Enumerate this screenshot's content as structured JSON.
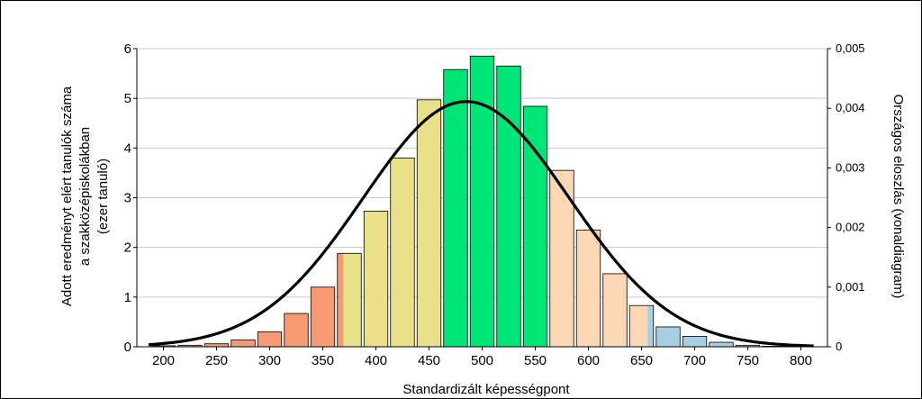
{
  "chart_data": {
    "type": "bar",
    "xlabel": "Standardizált képességpont",
    "ylabel_lines": [
      "Adott eredményt elért tanulók száma",
      "a szakközépiskolákban",
      "(ezer tanuló)"
    ],
    "y2label": "Országos eloszlás (vonaldiagram)",
    "ylim": [
      0,
      6
    ],
    "y2lim": [
      0,
      0.005
    ],
    "xlim": [
      175,
      825
    ],
    "grid": true,
    "x_ticks": [
      "200",
      "250",
      "300",
      "350",
      "400",
      "450",
      "500",
      "550",
      "600",
      "650",
      "700",
      "750",
      "800"
    ],
    "y_ticks": [
      "0",
      "1",
      "2",
      "3",
      "4",
      "5",
      "6"
    ],
    "y2_ticks": [
      "0",
      "0,001",
      "0,002",
      "0,003",
      "0,004",
      "0,005"
    ],
    "bin_width": 25,
    "colors": {
      "orange": "#f79a74",
      "yellow": "#ebe08a",
      "green": "#00e676",
      "peach": "#fbd7b4",
      "blue": "#a6cfe3",
      "curve": "#000000"
    },
    "bars": [
      {
        "x": 200,
        "value": 0.02,
        "color": "orange"
      },
      {
        "x": 225,
        "value": 0.03,
        "color": "orange"
      },
      {
        "x": 250,
        "value": 0.06,
        "color": "orange"
      },
      {
        "x": 275,
        "value": 0.14,
        "color": "orange"
      },
      {
        "x": 300,
        "value": 0.3,
        "color": "orange"
      },
      {
        "x": 325,
        "value": 0.67,
        "color": "orange"
      },
      {
        "x": 350,
        "value": 1.2,
        "color": "orange"
      },
      {
        "x": 375,
        "value": 1.88,
        "color": "yellow",
        "split": {
          "color": "orange",
          "fraction": 0.25
        }
      },
      {
        "x": 400,
        "value": 2.73,
        "color": "yellow"
      },
      {
        "x": 425,
        "value": 3.8,
        "color": "yellow"
      },
      {
        "x": 450,
        "value": 4.97,
        "color": "yellow"
      },
      {
        "x": 475,
        "value": 5.58,
        "color": "green"
      },
      {
        "x": 500,
        "value": 5.85,
        "color": "green"
      },
      {
        "x": 525,
        "value": 5.65,
        "color": "green"
      },
      {
        "x": 550,
        "value": 4.84,
        "color": "green"
      },
      {
        "x": 575,
        "value": 3.55,
        "color": "peach"
      },
      {
        "x": 600,
        "value": 2.35,
        "color": "peach"
      },
      {
        "x": 625,
        "value": 1.47,
        "color": "peach"
      },
      {
        "x": 650,
        "value": 0.83,
        "color": "peach",
        "split": {
          "color": "blue",
          "fraction": 0.25,
          "side": "right"
        }
      },
      {
        "x": 675,
        "value": 0.4,
        "color": "blue"
      },
      {
        "x": 700,
        "value": 0.21,
        "color": "blue"
      },
      {
        "x": 725,
        "value": 0.09,
        "color": "blue"
      },
      {
        "x": 750,
        "value": 0.03,
        "color": "blue"
      },
      {
        "x": 775,
        "value": 0.01,
        "color": "blue"
      }
    ],
    "curve": {
      "type": "normal",
      "mean": 485,
      "sd": 97,
      "axis": "y2"
    }
  }
}
